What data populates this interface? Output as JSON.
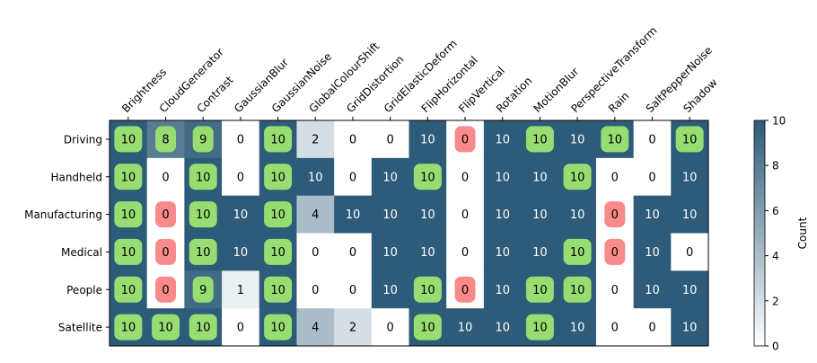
{
  "chart_data": {
    "type": "heatmap",
    "title": "",
    "columns": [
      "Brightness",
      "CloudGenerator",
      "Contrast",
      "GaussianBlur",
      "GaussianNoise",
      "GlobalColourShift",
      "GridDistortion",
      "GridElasticDeform",
      "FlipHorizontal",
      "FlipVertical",
      "Rotation",
      "MotionBlur",
      "PerspectiveTransform",
      "Rain",
      "SaltPepperNoise",
      "Shadow"
    ],
    "rows": [
      "Driving",
      "Handheld",
      "Manufacturing",
      "Medical",
      "People",
      "Satellite"
    ],
    "values": [
      [
        10,
        8,
        9,
        0,
        10,
        2,
        0,
        0,
        10,
        0,
        10,
        10,
        10,
        10,
        0,
        10
      ],
      [
        10,
        0,
        10,
        0,
        10,
        10,
        0,
        10,
        10,
        0,
        10,
        10,
        10,
        0,
        0,
        10
      ],
      [
        10,
        0,
        10,
        10,
        10,
        4,
        10,
        10,
        10,
        0,
        10,
        10,
        10,
        0,
        10,
        10
      ],
      [
        10,
        0,
        10,
        10,
        10,
        0,
        0,
        10,
        10,
        0,
        10,
        10,
        10,
        0,
        10,
        0
      ],
      [
        10,
        0,
        9,
        1,
        10,
        0,
        0,
        10,
        10,
        0,
        10,
        10,
        10,
        0,
        10,
        10
      ],
      [
        10,
        10,
        10,
        0,
        10,
        4,
        2,
        0,
        10,
        10,
        10,
        10,
        10,
        0,
        0,
        10
      ]
    ],
    "highlights": [
      [
        "green",
        "green",
        "green",
        "none",
        "green",
        "none",
        "none",
        "none",
        "none",
        "red",
        "none",
        "green",
        "none",
        "green",
        "none",
        "green"
      ],
      [
        "green",
        "none",
        "green",
        "none",
        "green",
        "none",
        "none",
        "none",
        "green",
        "none",
        "none",
        "none",
        "green",
        "none",
        "none",
        "none"
      ],
      [
        "green",
        "red",
        "green",
        "none",
        "green",
        "none",
        "none",
        "none",
        "none",
        "none",
        "none",
        "none",
        "none",
        "red",
        "none",
        "none"
      ],
      [
        "green",
        "red",
        "green",
        "none",
        "green",
        "none",
        "none",
        "none",
        "none",
        "none",
        "none",
        "none",
        "green",
        "red",
        "none",
        "none"
      ],
      [
        "green",
        "red",
        "green",
        "none",
        "green",
        "none",
        "none",
        "none",
        "green",
        "red",
        "none",
        "green",
        "green",
        "none",
        "none",
        "none"
      ],
      [
        "green",
        "green",
        "green",
        "none",
        "green",
        "none",
        "none",
        "none",
        "green",
        "none",
        "none",
        "green",
        "none",
        "none",
        "none",
        "none"
      ]
    ],
    "colorbar": {
      "label": "Count",
      "range": [
        0,
        10
      ],
      "ticks": [
        0,
        2,
        4,
        6,
        8,
        10
      ]
    },
    "colors": {
      "low": "#ffffff",
      "high": "#2d5b79",
      "green": "#98dd71",
      "red": "#f88a8a"
    }
  }
}
